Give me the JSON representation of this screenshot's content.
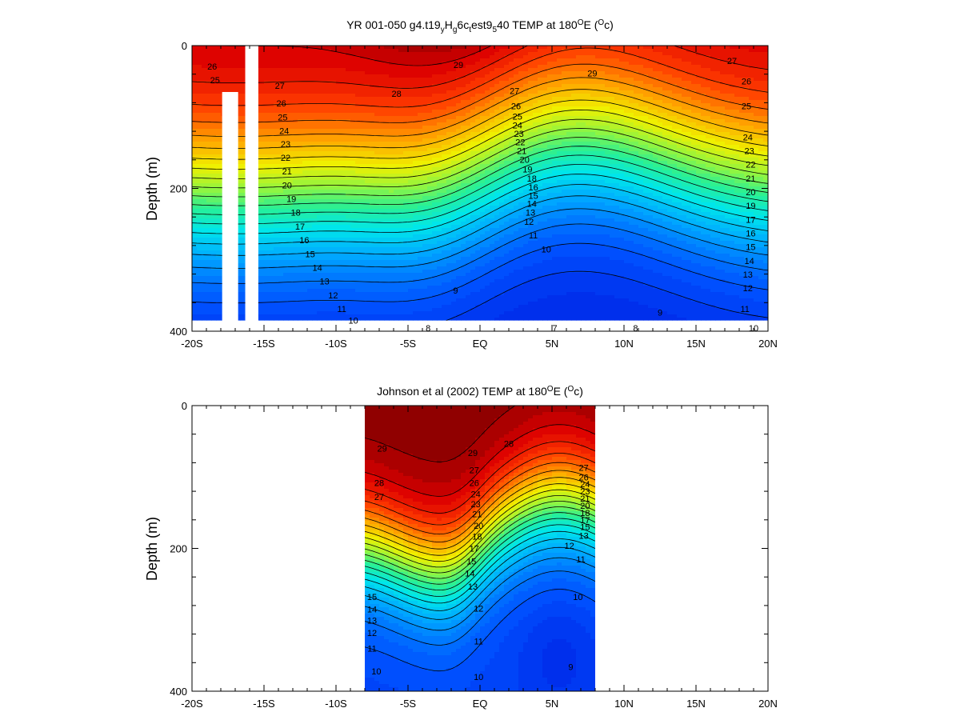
{
  "chart_data": [
    {
      "type": "heatmap",
      "subtype": "filled-contour",
      "title": "YR 001-050 g4.t19",
      "title_parts": [
        "YR 001-050 g4.t19",
        "y",
        "H",
        "g",
        "6c",
        "t",
        "est9",
        "5",
        "40 TEMP at 180",
        "O",
        "E (",
        "O",
        "c)"
      ],
      "ylabel": "Depth (m)",
      "xlabel": "",
      "xlim": [
        -20,
        20
      ],
      "ylim": [
        400,
        0
      ],
      "y_inverted": true,
      "x_ticks": [
        {
          "value": -20,
          "label": "-20S"
        },
        {
          "value": -15,
          "label": "-15S"
        },
        {
          "value": -10,
          "label": "-10S"
        },
        {
          "value": -5,
          "label": "-5S"
        },
        {
          "value": 0,
          "label": "EQ"
        },
        {
          "value": 5,
          "label": "5N"
        },
        {
          "value": 10,
          "label": "10N"
        },
        {
          "value": 15,
          "label": "15N"
        },
        {
          "value": 20,
          "label": "20N"
        }
      ],
      "y_ticks": [
        {
          "value": 0,
          "label": "0"
        },
        {
          "value": 200,
          "label": "200"
        },
        {
          "value": 400,
          "label": "400"
        }
      ],
      "data_x_range": [
        -20,
        20
      ],
      "data_depth_max": 385,
      "masked_columns": [
        {
          "x0": -17.9,
          "x1": -16.8,
          "z0": 65,
          "z1": 400
        },
        {
          "x0": -16.3,
          "x1": -15.4,
          "z0": 0,
          "z1": 400
        }
      ],
      "colorscale_range": [
        6,
        29.5
      ],
      "contour_levels": [
        7,
        8,
        9,
        10,
        11,
        12,
        13,
        14,
        15,
        16,
        17,
        18,
        19,
        20,
        21,
        22,
        23,
        24,
        25,
        26,
        27,
        28,
        29
      ],
      "contour_labels": [
        {
          "x": -18.6,
          "z": 30,
          "t": "26"
        },
        {
          "x": -18.4,
          "z": 50,
          "t": "25"
        },
        {
          "x": -5.8,
          "z": 70,
          "t": "28"
        },
        {
          "x": -1.5,
          "z": 28,
          "t": "29"
        },
        {
          "x": 7.8,
          "z": 40,
          "t": "29"
        },
        {
          "x": 17.5,
          "z": 22,
          "t": "27"
        },
        {
          "x": 18.5,
          "z": 52,
          "t": "26"
        },
        {
          "x": 18.5,
          "z": 88,
          "t": "25"
        },
        {
          "x": -13.9,
          "z": 58,
          "t": "27"
        },
        {
          "x": -13.8,
          "z": 84,
          "t": "26"
        },
        {
          "x": -13.7,
          "z": 104,
          "t": "25"
        },
        {
          "x": -13.6,
          "z": 124,
          "t": "24"
        },
        {
          "x": -13.5,
          "z": 143,
          "t": "23"
        },
        {
          "x": -13.5,
          "z": 163,
          "t": "22"
        },
        {
          "x": -13.4,
          "z": 183,
          "t": "21"
        },
        {
          "x": -13.4,
          "z": 203,
          "t": "20"
        },
        {
          "x": -13.1,
          "z": 223,
          "t": "19"
        },
        {
          "x": -12.8,
          "z": 243,
          "t": "18"
        },
        {
          "x": -12.5,
          "z": 263,
          "t": "17"
        },
        {
          "x": -12.2,
          "z": 283,
          "t": "16"
        },
        {
          "x": -11.8,
          "z": 303,
          "t": "15"
        },
        {
          "x": -11.3,
          "z": 323,
          "t": "14"
        },
        {
          "x": -10.8,
          "z": 343,
          "t": "13"
        },
        {
          "x": -10.2,
          "z": 363,
          "t": "12"
        },
        {
          "x": -9.6,
          "z": 383,
          "t": "11"
        },
        {
          "x": -8.8,
          "z": 400,
          "t": "10"
        },
        {
          "x": -1.7,
          "z": 356,
          "t": "9"
        },
        {
          "x": -3.6,
          "z": 420,
          "t": "8"
        },
        {
          "x": 2.4,
          "z": 66,
          "t": "27"
        },
        {
          "x": 2.5,
          "z": 88,
          "t": "26"
        },
        {
          "x": 2.6,
          "z": 103,
          "t": "25"
        },
        {
          "x": 2.6,
          "z": 116,
          "t": "24"
        },
        {
          "x": 2.7,
          "z": 128,
          "t": "23"
        },
        {
          "x": 2.8,
          "z": 140,
          "t": "22"
        },
        {
          "x": 2.9,
          "z": 153,
          "t": "21"
        },
        {
          "x": 3.1,
          "z": 166,
          "t": "20"
        },
        {
          "x": 3.3,
          "z": 180,
          "t": "19"
        },
        {
          "x": 3.6,
          "z": 193,
          "t": "18"
        },
        {
          "x": 3.7,
          "z": 206,
          "t": "16"
        },
        {
          "x": 3.7,
          "z": 218,
          "t": "15"
        },
        {
          "x": 3.6,
          "z": 230,
          "t": "14"
        },
        {
          "x": 3.5,
          "z": 243,
          "t": "13"
        },
        {
          "x": 3.4,
          "z": 256,
          "t": "12"
        },
        {
          "x": 3.7,
          "z": 276,
          "t": "11"
        },
        {
          "x": 4.6,
          "z": 296,
          "t": "10"
        },
        {
          "x": 5.2,
          "z": 465,
          "t": "7"
        },
        {
          "x": 10.8,
          "z": 420,
          "t": "8"
        },
        {
          "x": 12.5,
          "z": 388,
          "t": "9"
        },
        {
          "x": 18.6,
          "z": 133,
          "t": "24"
        },
        {
          "x": 18.7,
          "z": 153,
          "t": "23"
        },
        {
          "x": 18.8,
          "z": 173,
          "t": "22"
        },
        {
          "x": 18.8,
          "z": 193,
          "t": "21"
        },
        {
          "x": 18.8,
          "z": 213,
          "t": "20"
        },
        {
          "x": 18.8,
          "z": 233,
          "t": "19"
        },
        {
          "x": 18.8,
          "z": 253,
          "t": "17"
        },
        {
          "x": 18.8,
          "z": 273,
          "t": "16"
        },
        {
          "x": 18.8,
          "z": 293,
          "t": "15"
        },
        {
          "x": 18.7,
          "z": 313,
          "t": "14"
        },
        {
          "x": 18.6,
          "z": 333,
          "t": "13"
        },
        {
          "x": 18.6,
          "z": 353,
          "t": "12"
        },
        {
          "x": 18.4,
          "z": 383,
          "t": "11"
        },
        {
          "x": 19.0,
          "z": 423,
          "t": "10"
        }
      ]
    },
    {
      "type": "heatmap",
      "subtype": "filled-contour",
      "title": "Johnson et al (2002) TEMP at 180",
      "title_parts": [
        "Johnson et al (2002) TEMP at 180",
        "O",
        "E (",
        "O",
        "c)"
      ],
      "ylabel": "Depth (m)",
      "xlabel": "",
      "xlim": [
        -20,
        20
      ],
      "ylim": [
        400,
        0
      ],
      "y_inverted": true,
      "x_ticks": [
        {
          "value": -20,
          "label": "-20S"
        },
        {
          "value": -15,
          "label": "-15S"
        },
        {
          "value": -10,
          "label": "-10S"
        },
        {
          "value": -5,
          "label": "-5S"
        },
        {
          "value": 0,
          "label": "EQ"
        },
        {
          "value": 5,
          "label": "5N"
        },
        {
          "value": 10,
          "label": "10N"
        },
        {
          "value": 15,
          "label": "15N"
        },
        {
          "value": 20,
          "label": "20N"
        }
      ],
      "y_ticks": [
        {
          "value": 0,
          "label": "0"
        },
        {
          "value": 200,
          "label": "200"
        },
        {
          "value": 400,
          "label": "400"
        }
      ],
      "data_x_range": [
        -8,
        8
      ],
      "data_depth_max": 400,
      "masked_columns": [],
      "colorscale_range": [
        6,
        29.5
      ],
      "contour_levels": [
        9,
        10,
        11,
        12,
        13,
        14,
        15,
        16,
        17,
        18,
        19,
        20,
        21,
        22,
        23,
        24,
        25,
        26,
        27,
        28,
        29
      ],
      "contour_labels": [
        {
          "x": -6.8,
          "z": 60,
          "t": "29"
        },
        {
          "x": -7.0,
          "z": 108,
          "t": "28"
        },
        {
          "x": -7.0,
          "z": 128,
          "t": "27"
        },
        {
          "x": 2.0,
          "z": 53,
          "t": "28"
        },
        {
          "x": -0.5,
          "z": 66,
          "t": "29"
        },
        {
          "x": -0.4,
          "z": 90,
          "t": "27"
        },
        {
          "x": -0.4,
          "z": 108,
          "t": "26"
        },
        {
          "x": -0.3,
          "z": 124,
          "t": "24"
        },
        {
          "x": -0.3,
          "z": 138,
          "t": "23"
        },
        {
          "x": -0.2,
          "z": 152,
          "t": "21"
        },
        {
          "x": -0.1,
          "z": 168,
          "t": "20"
        },
        {
          "x": -0.2,
          "z": 183,
          "t": "18"
        },
        {
          "x": -0.4,
          "z": 200,
          "t": "17"
        },
        {
          "x": -0.6,
          "z": 218,
          "t": "15"
        },
        {
          "x": -0.7,
          "z": 235,
          "t": "14"
        },
        {
          "x": -0.5,
          "z": 253,
          "t": "13"
        },
        {
          "x": -0.1,
          "z": 284,
          "t": "12"
        },
        {
          "x": -0.1,
          "z": 330,
          "t": "11"
        },
        {
          "x": -0.1,
          "z": 380,
          "t": "10"
        },
        {
          "x": 7.2,
          "z": 87,
          "t": "27"
        },
        {
          "x": 7.2,
          "z": 100,
          "t": "26"
        },
        {
          "x": 7.3,
          "z": 110,
          "t": "24"
        },
        {
          "x": 7.3,
          "z": 120,
          "t": "23"
        },
        {
          "x": 7.3,
          "z": 130,
          "t": "21"
        },
        {
          "x": 7.3,
          "z": 140,
          "t": "20"
        },
        {
          "x": 7.3,
          "z": 150,
          "t": "18"
        },
        {
          "x": 7.3,
          "z": 160,
          "t": "17"
        },
        {
          "x": 7.3,
          "z": 170,
          "t": "15"
        },
        {
          "x": 7.2,
          "z": 182,
          "t": "13"
        },
        {
          "x": 6.2,
          "z": 196,
          "t": "12"
        },
        {
          "x": 7.0,
          "z": 215,
          "t": "11"
        },
        {
          "x": 6.8,
          "z": 268,
          "t": "10"
        },
        {
          "x": 6.3,
          "z": 366,
          "t": "9"
        },
        {
          "x": -7.5,
          "z": 268,
          "t": "15"
        },
        {
          "x": -7.5,
          "z": 285,
          "t": "14"
        },
        {
          "x": -7.5,
          "z": 301,
          "t": "13"
        },
        {
          "x": -7.5,
          "z": 318,
          "t": "12"
        },
        {
          "x": -7.5,
          "z": 340,
          "t": "11"
        },
        {
          "x": -7.2,
          "z": 372,
          "t": "10"
        }
      ]
    }
  ]
}
